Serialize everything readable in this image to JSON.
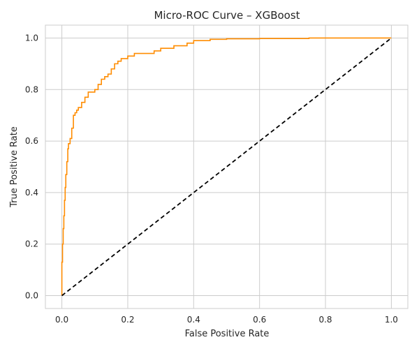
{
  "chart_data": {
    "type": "line",
    "title": "Micro-ROC Curve – XGBoost",
    "xlabel": "False Positive Rate",
    "ylabel": "True Positive Rate",
    "xlim": [
      -0.05,
      1.05
    ],
    "ylim": [
      -0.05,
      1.05
    ],
    "xticks": [
      "0.0",
      "0.2",
      "0.4",
      "0.6",
      "0.8",
      "1.0"
    ],
    "yticks": [
      "0.0",
      "0.2",
      "0.4",
      "0.6",
      "0.8",
      "1.0"
    ],
    "grid": true,
    "legend": "none",
    "series": [
      {
        "color": "#ff8c00",
        "style": "solid",
        "step": true,
        "x": [
          0.0,
          0.0,
          0.002,
          0.004,
          0.006,
          0.008,
          0.01,
          0.012,
          0.015,
          0.018,
          0.02,
          0.025,
          0.03,
          0.035,
          0.04,
          0.045,
          0.05,
          0.06,
          0.07,
          0.08,
          0.09,
          0.1,
          0.11,
          0.12,
          0.13,
          0.14,
          0.15,
          0.16,
          0.17,
          0.18,
          0.19,
          0.2,
          0.22,
          0.24,
          0.26,
          0.28,
          0.3,
          0.32,
          0.34,
          0.36,
          0.38,
          0.4,
          0.42,
          0.45,
          0.5,
          0.6,
          0.75,
          0.9,
          1.0
        ],
        "y": [
          0.0,
          0.13,
          0.2,
          0.26,
          0.31,
          0.37,
          0.42,
          0.47,
          0.52,
          0.57,
          0.59,
          0.61,
          0.65,
          0.7,
          0.71,
          0.72,
          0.73,
          0.75,
          0.77,
          0.79,
          0.79,
          0.8,
          0.82,
          0.84,
          0.85,
          0.86,
          0.88,
          0.9,
          0.91,
          0.92,
          0.92,
          0.93,
          0.94,
          0.94,
          0.94,
          0.95,
          0.96,
          0.96,
          0.97,
          0.97,
          0.98,
          0.99,
          0.99,
          0.995,
          0.997,
          0.998,
          1.0,
          1.0,
          1.0
        ]
      },
      {
        "color": "#000000",
        "style": "dashed",
        "step": false,
        "x": [
          0.0,
          1.0
        ],
        "y": [
          0.0,
          1.0
        ]
      }
    ]
  }
}
